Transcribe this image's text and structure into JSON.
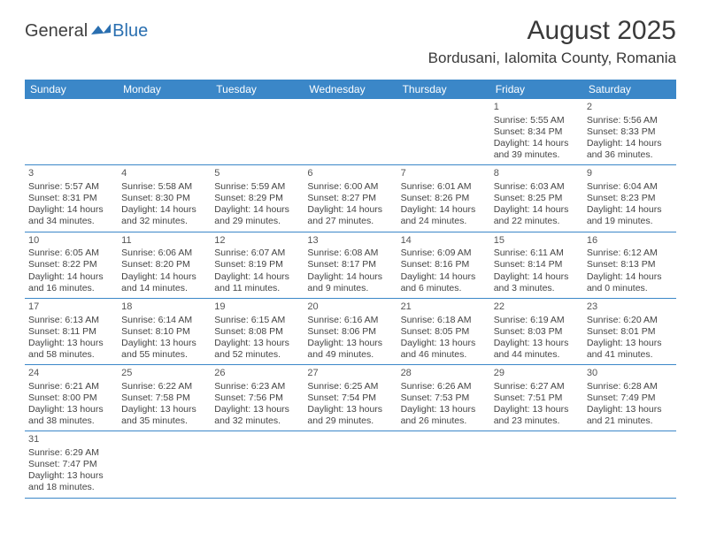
{
  "logo": {
    "part1": "General",
    "part2": "Blue"
  },
  "title": "August 2025",
  "location": "Bordusani, Ialomita County, Romania",
  "colors": {
    "header_bg": "#3b87c8",
    "header_text": "#ffffff",
    "cell_border_top": "#b8b8b8",
    "cell_border_bottom": "#3b87c8",
    "text": "#444444",
    "logo_gray": "#404040",
    "logo_blue": "#2a6fb0"
  },
  "dayHeaders": [
    "Sunday",
    "Monday",
    "Tuesday",
    "Wednesday",
    "Thursday",
    "Friday",
    "Saturday"
  ],
  "weeks": [
    [
      null,
      null,
      null,
      null,
      null,
      {
        "n": "1",
        "sr": "5:55 AM",
        "ss": "8:34 PM",
        "dl": "14 hours and 39 minutes."
      },
      {
        "n": "2",
        "sr": "5:56 AM",
        "ss": "8:33 PM",
        "dl": "14 hours and 36 minutes."
      }
    ],
    [
      {
        "n": "3",
        "sr": "5:57 AM",
        "ss": "8:31 PM",
        "dl": "14 hours and 34 minutes."
      },
      {
        "n": "4",
        "sr": "5:58 AM",
        "ss": "8:30 PM",
        "dl": "14 hours and 32 minutes."
      },
      {
        "n": "5",
        "sr": "5:59 AM",
        "ss": "8:29 PM",
        "dl": "14 hours and 29 minutes."
      },
      {
        "n": "6",
        "sr": "6:00 AM",
        "ss": "8:27 PM",
        "dl": "14 hours and 27 minutes."
      },
      {
        "n": "7",
        "sr": "6:01 AM",
        "ss": "8:26 PM",
        "dl": "14 hours and 24 minutes."
      },
      {
        "n": "8",
        "sr": "6:03 AM",
        "ss": "8:25 PM",
        "dl": "14 hours and 22 minutes."
      },
      {
        "n": "9",
        "sr": "6:04 AM",
        "ss": "8:23 PM",
        "dl": "14 hours and 19 minutes."
      }
    ],
    [
      {
        "n": "10",
        "sr": "6:05 AM",
        "ss": "8:22 PM",
        "dl": "14 hours and 16 minutes."
      },
      {
        "n": "11",
        "sr": "6:06 AM",
        "ss": "8:20 PM",
        "dl": "14 hours and 14 minutes."
      },
      {
        "n": "12",
        "sr": "6:07 AM",
        "ss": "8:19 PM",
        "dl": "14 hours and 11 minutes."
      },
      {
        "n": "13",
        "sr": "6:08 AM",
        "ss": "8:17 PM",
        "dl": "14 hours and 9 minutes."
      },
      {
        "n": "14",
        "sr": "6:09 AM",
        "ss": "8:16 PM",
        "dl": "14 hours and 6 minutes."
      },
      {
        "n": "15",
        "sr": "6:11 AM",
        "ss": "8:14 PM",
        "dl": "14 hours and 3 minutes."
      },
      {
        "n": "16",
        "sr": "6:12 AM",
        "ss": "8:13 PM",
        "dl": "14 hours and 0 minutes."
      }
    ],
    [
      {
        "n": "17",
        "sr": "6:13 AM",
        "ss": "8:11 PM",
        "dl": "13 hours and 58 minutes."
      },
      {
        "n": "18",
        "sr": "6:14 AM",
        "ss": "8:10 PM",
        "dl": "13 hours and 55 minutes."
      },
      {
        "n": "19",
        "sr": "6:15 AM",
        "ss": "8:08 PM",
        "dl": "13 hours and 52 minutes."
      },
      {
        "n": "20",
        "sr": "6:16 AM",
        "ss": "8:06 PM",
        "dl": "13 hours and 49 minutes."
      },
      {
        "n": "21",
        "sr": "6:18 AM",
        "ss": "8:05 PM",
        "dl": "13 hours and 46 minutes."
      },
      {
        "n": "22",
        "sr": "6:19 AM",
        "ss": "8:03 PM",
        "dl": "13 hours and 44 minutes."
      },
      {
        "n": "23",
        "sr": "6:20 AM",
        "ss": "8:01 PM",
        "dl": "13 hours and 41 minutes."
      }
    ],
    [
      {
        "n": "24",
        "sr": "6:21 AM",
        "ss": "8:00 PM",
        "dl": "13 hours and 38 minutes."
      },
      {
        "n": "25",
        "sr": "6:22 AM",
        "ss": "7:58 PM",
        "dl": "13 hours and 35 minutes."
      },
      {
        "n": "26",
        "sr": "6:23 AM",
        "ss": "7:56 PM",
        "dl": "13 hours and 32 minutes."
      },
      {
        "n": "27",
        "sr": "6:25 AM",
        "ss": "7:54 PM",
        "dl": "13 hours and 29 minutes."
      },
      {
        "n": "28",
        "sr": "6:26 AM",
        "ss": "7:53 PM",
        "dl": "13 hours and 26 minutes."
      },
      {
        "n": "29",
        "sr": "6:27 AM",
        "ss": "7:51 PM",
        "dl": "13 hours and 23 minutes."
      },
      {
        "n": "30",
        "sr": "6:28 AM",
        "ss": "7:49 PM",
        "dl": "13 hours and 21 minutes."
      }
    ],
    [
      {
        "n": "31",
        "sr": "6:29 AM",
        "ss": "7:47 PM",
        "dl": "13 hours and 18 minutes."
      },
      null,
      null,
      null,
      null,
      null,
      null
    ]
  ],
  "labels": {
    "sunrise": "Sunrise:",
    "sunset": "Sunset:",
    "daylight": "Daylight:"
  }
}
